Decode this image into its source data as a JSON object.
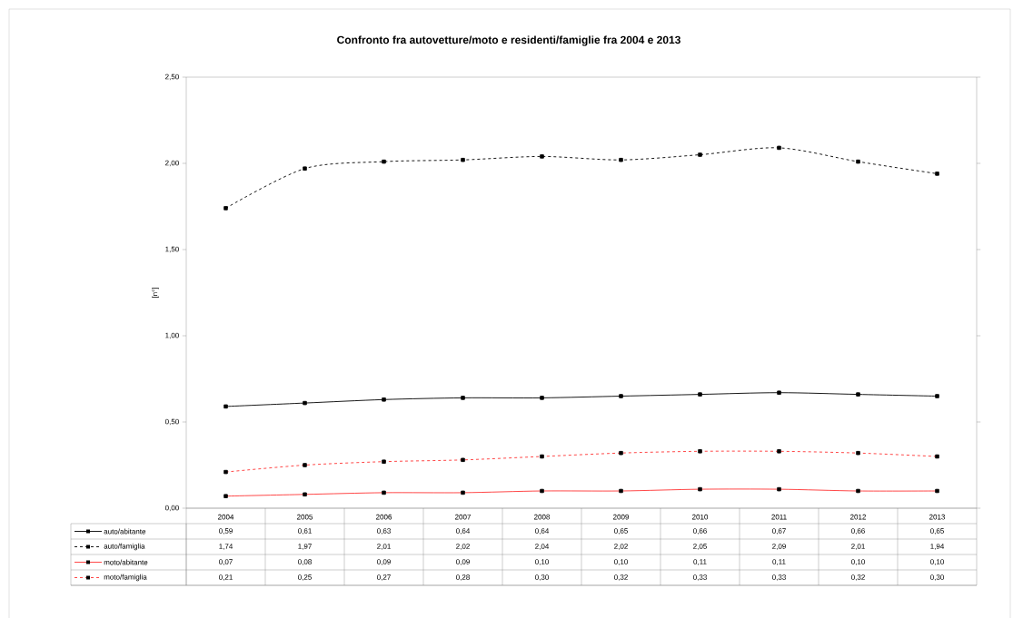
{
  "chart_data": {
    "type": "line",
    "title": "Confronto fra autovetture/moto e residenti/famiglie fra 2004 e 2013",
    "ylabel": "[n°]",
    "categories": [
      "2004",
      "2005",
      "2006",
      "2007",
      "2008",
      "2009",
      "2010",
      "2011",
      "2012",
      "2013"
    ],
    "ylim": [
      0,
      2.5
    ],
    "yticks": [
      {
        "value": 0,
        "label": "0,00"
      },
      {
        "value": 0.5,
        "label": "0,50"
      },
      {
        "value": 1,
        "label": "1,00"
      },
      {
        "value": 1.5,
        "label": "1,50"
      },
      {
        "value": 2,
        "label": "2,00"
      },
      {
        "value": 2.5,
        "label": "2,50"
      }
    ],
    "grid": false,
    "legend": "bottom",
    "marker": "square",
    "series": [
      {
        "name": "auto/abitante",
        "color": "#000000",
        "line_style": "solid",
        "values": [
          0.59,
          0.61,
          0.63,
          0.64,
          0.64,
          0.65,
          0.66,
          0.67,
          0.66,
          0.65
        ],
        "value_labels": [
          "0,59",
          "0,61",
          "0,63",
          "0,64",
          "0,64",
          "0,65",
          "0,66",
          "0,67",
          "0,66",
          "0,65"
        ]
      },
      {
        "name": "auto/famiglia",
        "color": "#000000",
        "line_style": "dashed",
        "values": [
          1.74,
          1.97,
          2.01,
          2.02,
          2.04,
          2.02,
          2.05,
          2.09,
          2.01,
          1.94
        ],
        "value_labels": [
          "1,74",
          "1,97",
          "2,01",
          "2,02",
          "2,04",
          "2,02",
          "2,05",
          "2,09",
          "2,01",
          "1,94"
        ]
      },
      {
        "name": "moto/abitante",
        "color": "#ff3333",
        "line_style": "solid",
        "values": [
          0.07,
          0.08,
          0.09,
          0.09,
          0.1,
          0.1,
          0.11,
          0.11,
          0.1,
          0.1
        ],
        "value_labels": [
          "0,07",
          "0,08",
          "0,09",
          "0,09",
          "0,10",
          "0,10",
          "0,11",
          "0,11",
          "0,10",
          "0,10"
        ]
      },
      {
        "name": "moto/famiglia",
        "color": "#ff3333",
        "line_style": "dashed",
        "values": [
          0.21,
          0.25,
          0.27,
          0.28,
          0.3,
          0.32,
          0.33,
          0.33,
          0.32,
          0.3
        ],
        "value_labels": [
          "0,21",
          "0,25",
          "0,27",
          "0,28",
          "0,30",
          "0,32",
          "0,33",
          "0,33",
          "0,32",
          "0,30"
        ]
      }
    ]
  }
}
